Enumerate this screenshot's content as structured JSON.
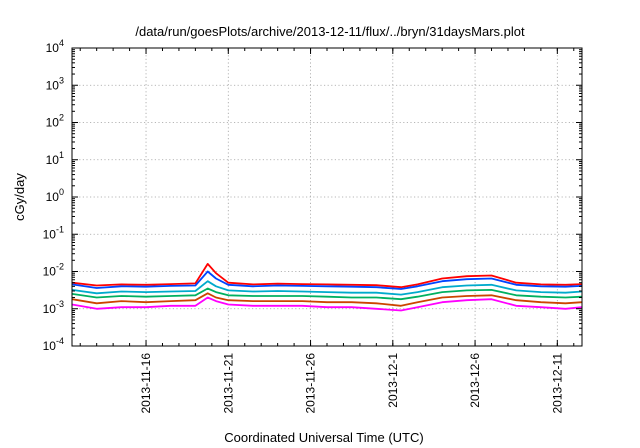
{
  "chart_data": {
    "type": "line",
    "title": "/data/run/goesPlots/archive/2013-12-11/flux/../bryn/31daysMars.plot",
    "xlabel": "Coordinated Universal Time (UTC)",
    "ylabel": "cGy/day",
    "x_scale": "time",
    "y_scale": "log",
    "xlim": [
      "2013-11-11T12:00",
      "2013-12-12T12:00"
    ],
    "ylim": [
      0.0001,
      10000
    ],
    "grid": true,
    "legend": "none",
    "x_ticks": [
      {
        "date": "2013-11-16",
        "label": "2013-11-16"
      },
      {
        "date": "2013-11-21",
        "label": "2013-11-21"
      },
      {
        "date": "2013-11-26",
        "label": "2013-11-26"
      },
      {
        "date": "2013-12-01",
        "label": "2013-12-1"
      },
      {
        "date": "2013-12-06",
        "label": "2013-12-6"
      },
      {
        "date": "2013-12-11",
        "label": "2013-12-11"
      }
    ],
    "y_ticks": [
      {
        "value": 0.0001,
        "base": "10",
        "exp": "-4"
      },
      {
        "value": 0.001,
        "base": "10",
        "exp": "-3"
      },
      {
        "value": 0.01,
        "base": "10",
        "exp": "-2"
      },
      {
        "value": 0.1,
        "base": "10",
        "exp": "-1"
      },
      {
        "value": 1,
        "base": "10",
        "exp": "0"
      },
      {
        "value": 10,
        "base": "10",
        "exp": "1"
      },
      {
        "value": 100,
        "base": "10",
        "exp": "2"
      },
      {
        "value": 1000,
        "base": "10",
        "exp": "3"
      },
      {
        "value": 10000,
        "base": "10",
        "exp": "4"
      }
    ],
    "x": [
      "2013-11-11T12:00",
      "2013-11-13T00:00",
      "2013-11-14T12:00",
      "2013-11-16T00:00",
      "2013-11-17T12:00",
      "2013-11-19T00:00",
      "2013-11-19T18:00",
      "2013-11-20T06:00",
      "2013-11-21T00:00",
      "2013-11-22T12:00",
      "2013-11-24T00:00",
      "2013-11-25T12:00",
      "2013-11-27T00:00",
      "2013-11-28T12:00",
      "2013-11-30T00:00",
      "2013-12-01T12:00",
      "2013-12-02T12:00",
      "2013-12-04T00:00",
      "2013-12-05T12:00",
      "2013-12-07T00:00",
      "2013-12-08T12:00",
      "2013-12-10T00:00",
      "2013-12-11T12:00",
      "2013-12-12T12:00"
    ],
    "series": [
      {
        "color": "#ff0000",
        "values": [
          0.005,
          0.0042,
          0.0045,
          0.0044,
          0.0046,
          0.0048,
          0.016,
          0.009,
          0.005,
          0.0045,
          0.0047,
          0.0046,
          0.0045,
          0.0044,
          0.0043,
          0.0038,
          0.0045,
          0.0065,
          0.0075,
          0.0078,
          0.005,
          0.0045,
          0.0044,
          0.0046
        ]
      },
      {
        "color": "#0044ff",
        "values": [
          0.0045,
          0.0036,
          0.004,
          0.0039,
          0.0041,
          0.0042,
          0.01,
          0.0065,
          0.0044,
          0.004,
          0.0042,
          0.0041,
          0.004,
          0.0039,
          0.0038,
          0.0034,
          0.004,
          0.0055,
          0.0062,
          0.0065,
          0.0044,
          0.004,
          0.0039,
          0.0041
        ]
      },
      {
        "color": "#00aacc",
        "values": [
          0.0032,
          0.0026,
          0.0029,
          0.0028,
          0.0029,
          0.003,
          0.0055,
          0.004,
          0.0031,
          0.0029,
          0.003,
          0.0029,
          0.0028,
          0.0027,
          0.0027,
          0.0024,
          0.0028,
          0.0038,
          0.0042,
          0.0044,
          0.0031,
          0.0028,
          0.0027,
          0.0029
        ]
      },
      {
        "color": "#00b060",
        "values": [
          0.0025,
          0.002,
          0.0022,
          0.0021,
          0.0022,
          0.0023,
          0.0035,
          0.0028,
          0.0023,
          0.0022,
          0.0022,
          0.0022,
          0.0021,
          0.002,
          0.002,
          0.0018,
          0.0021,
          0.0028,
          0.0031,
          0.0032,
          0.0023,
          0.0021,
          0.002,
          0.0021
        ]
      },
      {
        "color": "#cc4400",
        "values": [
          0.0018,
          0.0014,
          0.0016,
          0.0015,
          0.0016,
          0.0017,
          0.0026,
          0.002,
          0.0017,
          0.0016,
          0.0016,
          0.0016,
          0.0015,
          0.0015,
          0.0014,
          0.0012,
          0.0015,
          0.002,
          0.0022,
          0.0023,
          0.0017,
          0.0015,
          0.0014,
          0.0015
        ]
      },
      {
        "color": "#ff00ff",
        "values": [
          0.0013,
          0.001,
          0.0011,
          0.0011,
          0.0012,
          0.0012,
          0.002,
          0.0016,
          0.0013,
          0.0012,
          0.0012,
          0.0012,
          0.0011,
          0.0011,
          0.001,
          0.0009,
          0.0011,
          0.0015,
          0.0017,
          0.0018,
          0.0012,
          0.0011,
          0.001,
          0.0011
        ]
      }
    ]
  }
}
